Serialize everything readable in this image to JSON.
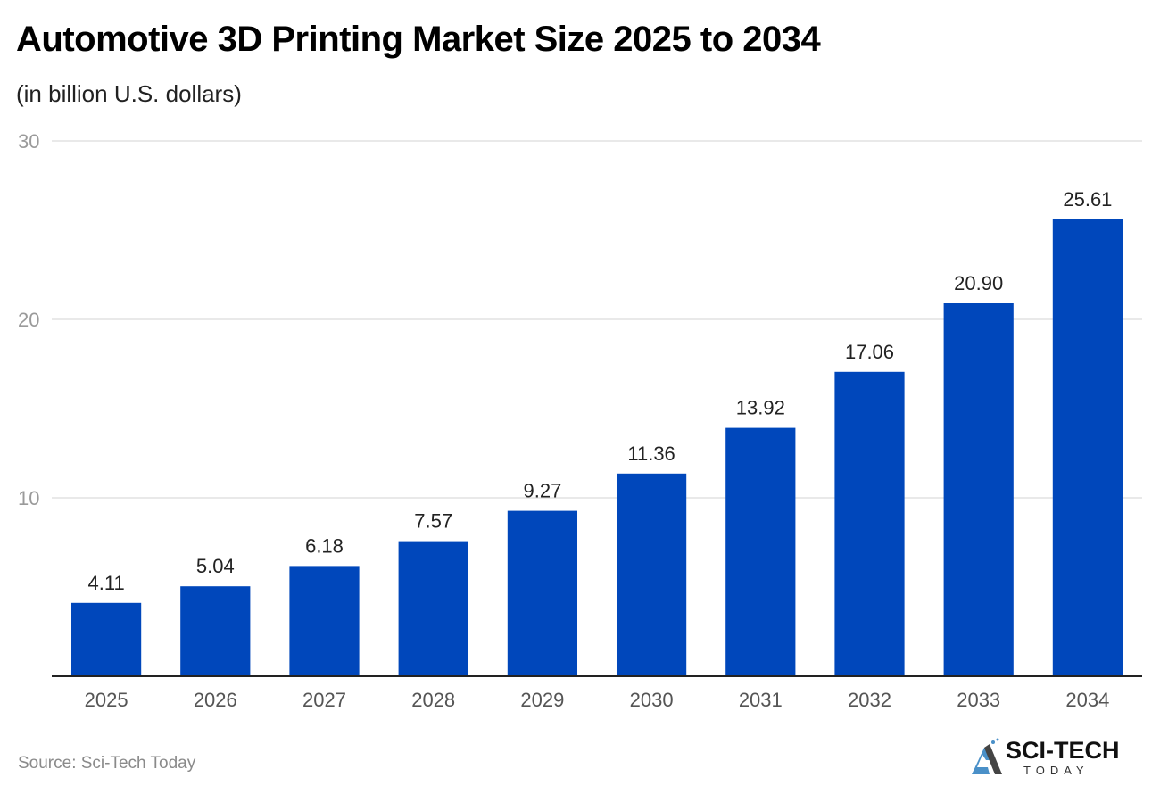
{
  "title": "Automotive 3D Printing Market Size 2025 to 2034",
  "subtitle": "(in billion U.S. dollars)",
  "source": "Source: Sci-Tech Today",
  "logo": {
    "main": "SCI-TECH",
    "sub": "TODAY",
    "accent": "#4a90c8"
  },
  "colors": {
    "bar": "#0047bb",
    "grid": "#e2e2e2",
    "axis": "#222222",
    "tick_label": "#9a9a9a",
    "category_label": "#555555",
    "value_label": "#222222"
  },
  "chart_data": {
    "type": "bar",
    "title": "Automotive 3D Printing Market Size 2025 to 2034",
    "subtitle": "(in billion U.S. dollars)",
    "xlabel": "",
    "ylabel": "",
    "categories": [
      "2025",
      "2026",
      "2027",
      "2028",
      "2029",
      "2030",
      "2031",
      "2032",
      "2033",
      "2034"
    ],
    "values": [
      4.11,
      5.04,
      6.18,
      7.57,
      9.27,
      11.36,
      13.92,
      17.06,
      20.9,
      25.61
    ],
    "value_labels": [
      "4.11",
      "5.04",
      "6.18",
      "7.57",
      "9.27",
      "11.36",
      "13.92",
      "17.06",
      "20.90",
      "25.61"
    ],
    "ylim": [
      0,
      30
    ],
    "yticks": [
      10,
      20,
      30
    ],
    "ytick_labels": [
      "10",
      "20",
      "30"
    ],
    "grid": true,
    "legend": "none"
  }
}
